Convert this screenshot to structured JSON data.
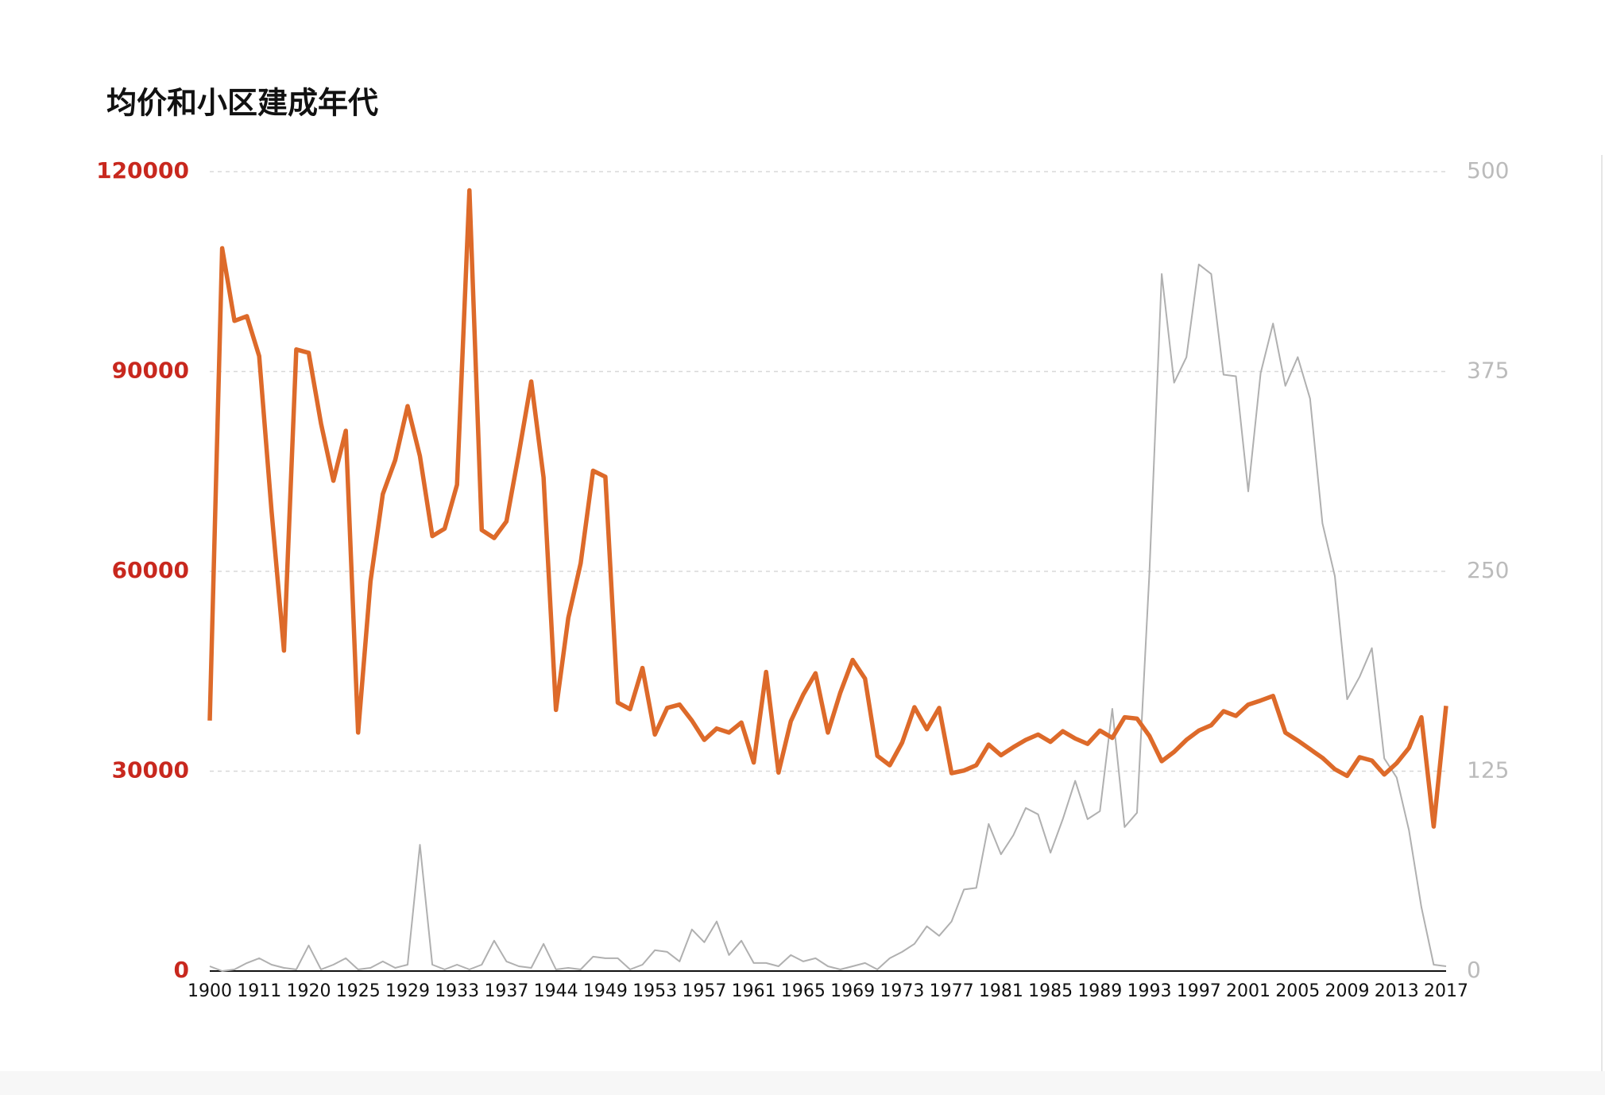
{
  "chart_data": {
    "type": "line",
    "title": "均价和小区建成年代",
    "categories": [
      "1900",
      null,
      null,
      null,
      "1911",
      null,
      null,
      null,
      "1920",
      null,
      null,
      null,
      "1925",
      null,
      null,
      null,
      "1929",
      null,
      null,
      null,
      "1933",
      null,
      null,
      null,
      "1937",
      null,
      null,
      null,
      "1944",
      null,
      null,
      null,
      "1949",
      null,
      null,
      null,
      "1953",
      null,
      null,
      null,
      "1957",
      null,
      null,
      null,
      "1961",
      null,
      null,
      null,
      "1965",
      null,
      null,
      null,
      "1969",
      null,
      null,
      null,
      "1973",
      null,
      null,
      null,
      "1977",
      null,
      null,
      null,
      "1981",
      null,
      null,
      null,
      "1985",
      null,
      null,
      null,
      "1989",
      null,
      null,
      null,
      "1993",
      null,
      null,
      null,
      "1997",
      null,
      null,
      null,
      "2001",
      null,
      null,
      null,
      "2005",
      null,
      null,
      null,
      "2009",
      null,
      null,
      null,
      "2013",
      null,
      null,
      null,
      "2017"
    ],
    "series": [
      {
        "color": "#dd6a2a",
        "values": [
          37600,
          108500,
          97600,
          98300,
          92300,
          69000,
          48100,
          93300,
          92800,
          82200,
          73600,
          81100,
          35800,
          58500,
          71600,
          76700,
          84800,
          77300,
          65300,
          66400,
          73000,
          117200,
          66200,
          65000,
          67500,
          77700,
          88500,
          74100,
          39200,
          53000,
          61200,
          75100,
          74200,
          40300,
          39300,
          45500,
          35500,
          39500,
          40000,
          37600,
          34700,
          36400,
          35800,
          37300,
          31300,
          44900,
          29800,
          37500,
          41500,
          44700,
          35800,
          41800,
          46700,
          43900,
          32300,
          30900,
          34300,
          39600,
          36300,
          39500,
          29700,
          30100,
          30900,
          34000,
          32400,
          33600,
          34700,
          35500,
          34400,
          36000,
          34900,
          34100,
          36100,
          35000,
          38100,
          37900,
          35300,
          31500,
          32900,
          34700,
          36100,
          36900,
          39000,
          38300,
          40000,
          40600,
          41300,
          35800,
          34600,
          33300,
          32000,
          30300,
          29300,
          32100,
          31600,
          29500,
          31200,
          33500,
          38100,
          21700,
          39800
        ]
      },
      {
        "color": "#b0b0b0",
        "axis": "y2",
        "values": [
          3,
          0,
          1,
          5,
          8,
          4,
          2,
          1,
          16,
          1,
          4,
          8,
          1,
          2,
          6,
          2,
          4,
          79,
          4,
          1,
          4,
          1,
          4,
          19,
          6,
          3,
          2,
          17,
          1,
          2,
          1,
          9,
          8,
          8,
          1,
          4,
          13,
          12,
          6,
          26,
          18,
          31,
          10,
          19,
          5,
          5,
          3,
          10,
          6,
          8,
          3,
          1,
          3,
          5,
          1,
          8,
          12,
          17,
          28,
          22,
          31,
          51,
          52,
          92,
          73,
          85,
          102,
          98,
          74,
          95,
          119,
          95,
          100,
          164,
          90,
          99,
          249,
          436,
          368,
          384,
          442,
          436,
          373,
          372,
          300,
          374,
          405,
          366,
          384,
          358,
          280,
          247,
          170,
          184,
          202,
          133,
          121,
          88,
          40,
          4,
          3
        ]
      }
    ],
    "ylim": [
      0,
      120000
    ],
    "yticks": [
      0,
      30000,
      60000,
      90000,
      120000
    ],
    "ytick_color": "#c8281e",
    "y2lim": [
      0,
      500
    ],
    "y2ticks": [
      0,
      125,
      250,
      375,
      500
    ],
    "y2tick_color": "#bbbbbb",
    "grid": true
  }
}
